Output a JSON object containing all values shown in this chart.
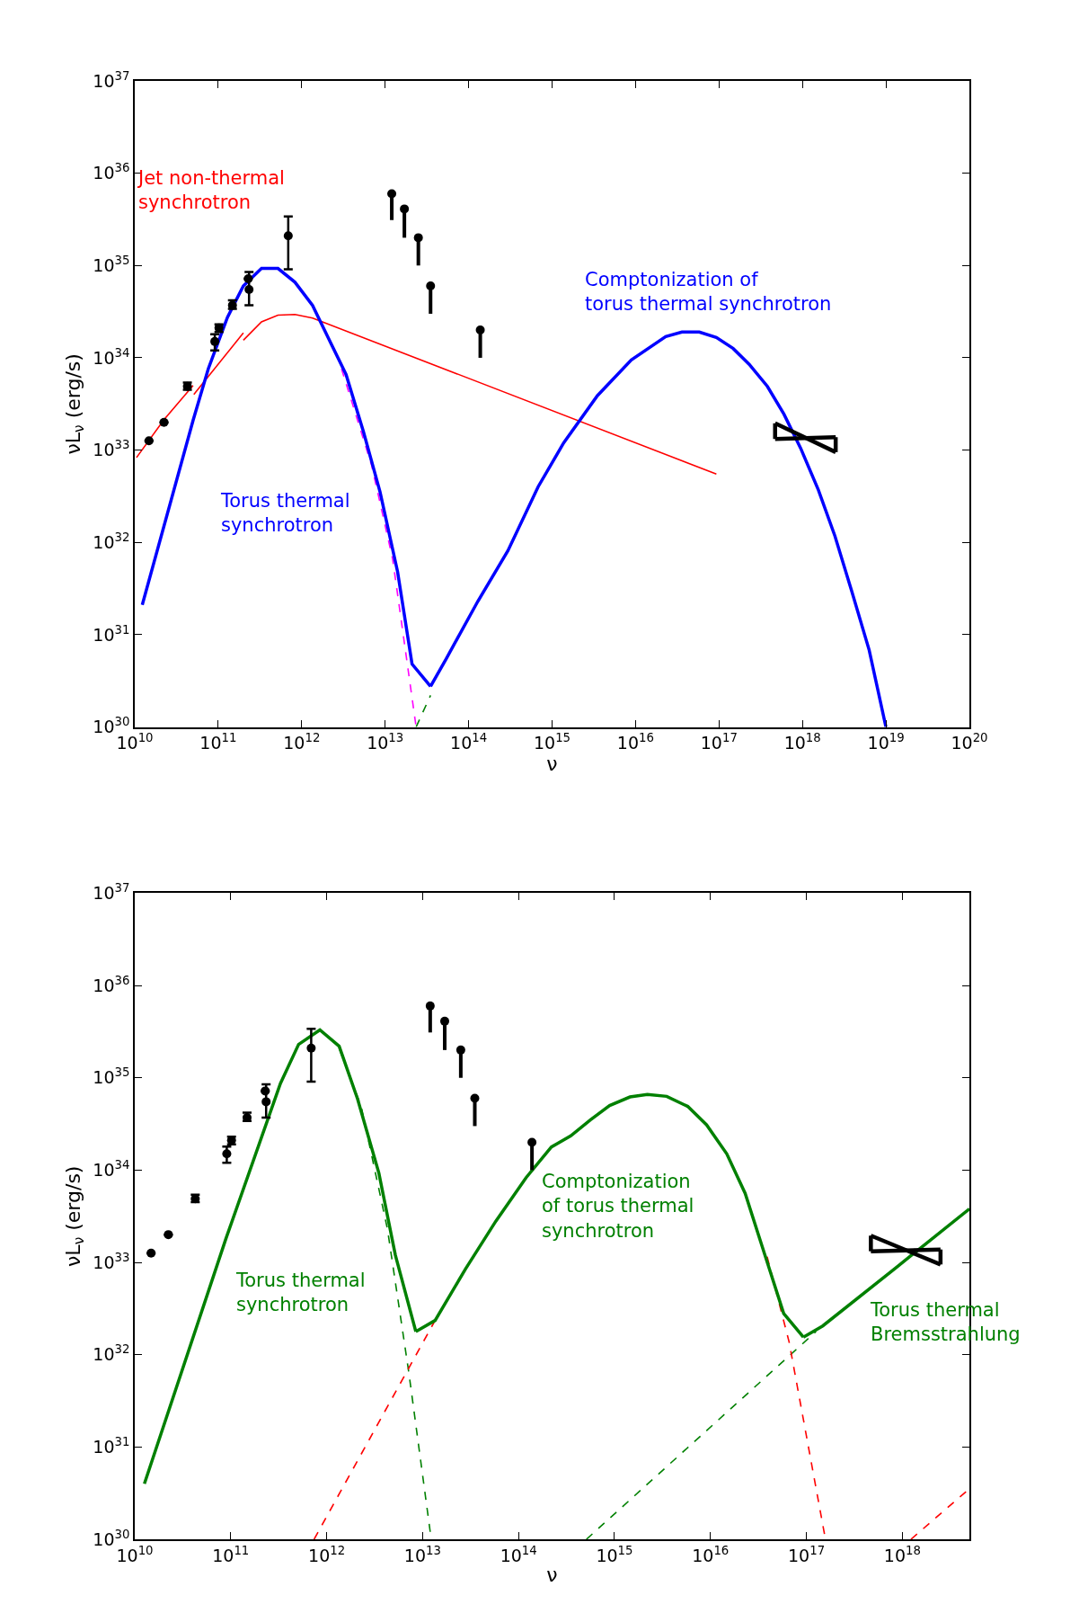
{
  "chart_data": [
    {
      "type": "line",
      "xlabel": "ν",
      "ylabel": "νL$_{ν}$ (erg/s)",
      "log": "xy",
      "xlim": [
        10000000000.0,
        1e+20
      ],
      "ylim": [
        1e+30,
        1e+37
      ],
      "xticks": [
        {
          "value": 10000000000.0,
          "label": "10$^{10}$"
        },
        {
          "value": 100000000000.0,
          "label": "10$^{11}$"
        },
        {
          "value": 1000000000000.0,
          "label": "10$^{12}$"
        },
        {
          "value": 10000000000000.0,
          "label": "10$^{13}$"
        },
        {
          "value": 100000000000000.0,
          "label": "10$^{14}$"
        },
        {
          "value": 1000000000000000.0,
          "label": "10$^{15}$"
        },
        {
          "value": 1e+16,
          "label": "10$^{16}$"
        },
        {
          "value": 1e+17,
          "label": "10$^{17}$"
        },
        {
          "value": 1e+18,
          "label": "10$^{18}$"
        },
        {
          "value": 1e+19,
          "label": "10$^{19}$"
        },
        {
          "value": 1e+20,
          "label": "10$^{20}$"
        }
      ],
      "yticks": [
        {
          "value": 1e+30,
          "label": "10$^{30}$"
        },
        {
          "value": 1e+31,
          "label": "10$^{31}$"
        },
        {
          "value": 1e+32,
          "label": "10$^{32}$"
        },
        {
          "value": 1e+33,
          "label": "10$^{33}$"
        },
        {
          "value": 1e+34,
          "label": "10$^{34}$"
        },
        {
          "value": 1e+35,
          "label": "10$^{35}$"
        },
        {
          "value": 1e+36,
          "label": "10$^{36}$"
        },
        {
          "value": 1e+37,
          "label": "10$^{37}$"
        }
      ],
      "series": [
        {
          "name": "Jet non-thermal\nsynchrotron",
          "color": "#ff0000",
          "line_style": "solid",
          "marker": "none",
          "x": [
            10500000000.0,
            22400000000.0,
            50000000000.0,
            null,
            51000000000.0,
            200000000000.0,
            null,
            200000000000.0,
            330000000000.0,
            520000000000.0,
            830000000000.0,
            1350000000000.0,
            9.3e+16
          ],
          "values": [
            8.3e+32,
            2.14e+33,
            5e+33,
            null,
            4e+33,
            1.86e+34,
            null,
            1.55e+34,
            2.45e+34,
            2.9e+34,
            2.95e+34,
            2.7e+34,
            5.5e+32
          ]
        },
        {
          "color": "#ff00ff",
          "line_style": "dashed",
          "marker": "none",
          "x": [
            3000000000000.0,
            6900000000000.0,
            12300000000000.0,
            23500000000000.0
          ],
          "values": [
            7.6e+33,
            6.8e+32,
            6.6e+31,
            1e+30
          ]
        },
        {
          "color": "#008000",
          "line_style": "dashed",
          "marker": "none",
          "x": [
            23500000000000.0,
            35000000000000.0
          ],
          "values": [
            1e+30,
            2.2e+30
          ]
        },
        {
          "name": "Torus thermal\nsynchrotron",
          "color": "#0000ff",
          "line_style": "solid",
          "marker": "none",
          "x": [
            12300000000.0,
            50000000000.0,
            76000000000.0,
            129000000000.0,
            200000000000.0,
            330000000000.0,
            520000000000.0,
            830000000000.0,
            1350000000000.0,
            2100000000000.0,
            3400000000000.0,
            5500000000000.0,
            8700000000000.0,
            14100000000000.0,
            21000000000000.0,
            35000000000000.0
          ],
          "values": [
            2.1e+31,
            2.1e+33,
            7.6e+33,
            2.75e+34,
            6e+34,
            9.3e+34,
            9.3e+34,
            6.6e+34,
            3.7e+34,
            1.62e+34,
            6.6e+33,
            1.58e+33,
            3.5e+32,
            4.8e+31,
            4.8e+30,
            2.75e+30
          ]
        },
        {
          "name": "Comptonization of\ntorus thermal synchrotron",
          "color": "#0000ff",
          "line_style": "solid",
          "marker": "none",
          "x": [
            35000000000000.0,
            54000000000000.0,
            129000000000000.0,
            295000000000000.0,
            680000000000000.0,
            1380000000000000.0,
            3500000000000000.0,
            8900000000000000.0,
            2.3e+16,
            3.6e+16,
            5.8e+16,
            9.3e+16,
            1.48e+17,
            2.3e+17,
            3.8e+17,
            6e+17,
            9.5e+17,
            1.55e+18,
            2.45e+18,
            3.9e+18,
            6.3e+18,
            1e+19
          ],
          "values": [
            2.75e+30,
            5.5e+30,
            2.3e+31,
            8.1e+31,
            4e+32,
            1.2e+33,
            3.9e+33,
            9.5e+33,
            1.7e+34,
            1.9e+34,
            1.9e+34,
            1.66e+34,
            1.26e+34,
            8.5e+33,
            4.9e+33,
            2.45e+33,
            1.05e+33,
            3.7e+32,
            1.17e+32,
            2.95e+31,
            6.8e+30,
            1e+30
          ]
        },
        {
          "color": "#000000",
          "line_style": "solid",
          "marker": "none",
          "x": [
            4.7e+17,
            2.5e+18
          ],
          "values": [
            1.95e+33,
            9.5e+32
          ]
        },
        {
          "color": "#000000",
          "line_style": "solid",
          "marker": "none",
          "x": [
            4.7e+17,
            2.5e+18
          ],
          "values": [
            1.32e+33,
            1.38e+33
          ],
          "errors": [
            [
              1.32e+33,
              1.95e+33
            ],
            [
              9.5e+32,
              1.38e+33
            ]
          ]
        },
        {
          "color": "#000000",
          "type": "scatter",
          "marker": "circle",
          "x": [
            14800000000.0,
            22400000000.0,
            42700000000.0,
            91000000000.0,
            102000000000.0,
            148000000000.0,
            229000000000.0,
            234000000000.0,
            690000000000.0
          ],
          "values": [
            1.26e+33,
            2e+33,
            4.9e+33,
            1.5e+34,
            2.1e+34,
            3.7e+34,
            7.2e+34,
            5.5e+34,
            2.1e+35
          ],
          "errors": [
            null,
            null,
            [
              4.5e+33,
              5.4e+33
            ],
            [
              1.2e+34,
              1.8e+34
            ],
            [
              1.9e+34,
              2.3e+34
            ],
            [
              3.4e+34,
              4.2e+34
            ],
            null,
            [
              3.7e+34,
              8.5e+34
            ],
            [
              9.1e+34,
              3.4e+35
            ]
          ]
        },
        {
          "color": "#000000",
          "type": "scatter",
          "marker": "circle",
          "x": [
            12000000000000.0,
            17000000000000.0,
            25000000000000.0,
            35000000000000.0,
            138000000000000.0
          ],
          "values": [
            6e+35,
            4.1e+35,
            2e+35,
            6e+34,
            2e+34
          ],
          "errors": [
            [
              3.1e+35,
              6e+35
            ],
            [
              2e+35,
              4.1e+35
            ],
            [
              1e+35,
              2e+35
            ],
            [
              3e+34,
              6e+34
            ],
            [
              1e+34,
              2e+34
            ]
          ]
        }
      ]
    },
    {
      "type": "line",
      "xlabel": "ν",
      "ylabel": "νL$_{ν}$ (erg/s)",
      "log": "xy",
      "xlim": [
        10000000000.0,
        5e+18
      ],
      "ylim": [
        1e+30,
        1e+37
      ],
      "xticks": [
        {
          "value": 10000000000.0,
          "label": "10$^{10}$"
        },
        {
          "value": 100000000000.0,
          "label": "10$^{11}$"
        },
        {
          "value": 1000000000000.0,
          "label": "10$^{12}$"
        },
        {
          "value": 10000000000000.0,
          "label": "10$^{13}$"
        },
        {
          "value": 100000000000000.0,
          "label": "10$^{14}$"
        },
        {
          "value": 1000000000000000.0,
          "label": "10$^{15}$"
        },
        {
          "value": 1e+16,
          "label": "10$^{16}$"
        },
        {
          "value": 1e+17,
          "label": "10$^{17}$"
        },
        {
          "value": 1e+18,
          "label": "10$^{18}$"
        }
      ],
      "yticks": [
        {
          "value": 1e+30,
          "label": "10$^{30}$"
        },
        {
          "value": 1e+31,
          "label": "10$^{31}$"
        },
        {
          "value": 1e+32,
          "label": "10$^{32}$"
        },
        {
          "value": 1e+33,
          "label": "10$^{33}$"
        },
        {
          "value": 1e+34,
          "label": "10$^{34}$"
        },
        {
          "value": 1e+35,
          "label": "10$^{35}$"
        },
        {
          "value": 1e+36,
          "label": "10$^{36}$"
        },
        {
          "value": 1e+37,
          "label": "10$^{37}$"
        }
      ],
      "series": [
        {
          "color": "#008000",
          "line_style": "dashed",
          "marker": "none",
          "x": [
            1350000000000.0,
            2300000000000.0,
            4300000000000.0,
            7200000000000.0,
            12300000000000.0
          ],
          "values": [
            2.1e+35,
            4.8e+34,
            2.3e+33,
            6.3e+31,
            1e+30
          ]
        },
        {
          "color": "#008000",
          "line_style": "dashed",
          "marker": "none",
          "x": [
            510000000000000.0,
            1.26e+17
          ],
          "values": [
            1e+30,
            1.78e+32
          ]
        },
        {
          "color": "#ff0000",
          "line_style": "dashed",
          "marker": "none",
          "x": [
            740000000000.0,
            13500000000000.0
          ],
          "values": [
            1e+30,
            2.35e+32
          ]
        },
        {
          "color": "#ff0000",
          "line_style": "dashed",
          "marker": "none",
          "x": [
            3.9e+16,
            6.6e+16,
            1.58e+17
          ],
          "values": [
            1.15e+33,
            1.38e+32,
            1e+30
          ]
        },
        {
          "color": "#ff0000",
          "line_style": "dashed",
          "marker": "none",
          "x": [
            1.23e+18,
            4.8e+18
          ],
          "values": [
            1e+30,
            3.4e+30
          ]
        },
        {
          "name": "Torus thermal\nsynchrotron",
          "color": "#008000",
          "line_style": "solid",
          "marker": "none",
          "x": [
            12600000000.0,
            89000000000.0,
            330000000000.0,
            510000000000.0,
            850000000000.0,
            1350000000000.0,
            2100000000000.0,
            3500000000000.0,
            5200000000000.0,
            8500000000000.0
          ],
          "values": [
            4e+30,
            1.8e+33,
            8.7e+34,
            2.3e+35,
            3.3e+35,
            2.2e+35,
            5.9e+34,
            9.3e+33,
            1.2e+33,
            1.78e+32
          ]
        },
        {
          "name": "Comptonization\nof torus thermal\nsynchrotron",
          "color": "#008000",
          "line_style": "solid",
          "marker": "none",
          "x": [
            8500000000000.0,
            13500000000000.0,
            28000000000000.0,
            58000000000000.0,
            120000000000000.0,
            220000000000000.0,
            350000000000000.0,
            560000000000000.0,
            890000000000000.0,
            1450000000000000.0,
            2200000000000000.0,
            3500000000000000.0,
            5800000000000000.0,
            9100000000000000.0,
            1.48e+16,
            2.3e+16,
            3.7e+16,
            5.8e+16,
            9.3e+16
          ],
          "values": [
            1.78e+32,
            2.35e+32,
            8.5e+32,
            2.8e+33,
            8.3e+33,
            1.78e+34,
            2.35e+34,
            3.5e+34,
            5e+34,
            6.2e+34,
            6.6e+34,
            6.3e+34,
            4.9e+34,
            3.1e+34,
            1.5e+34,
            5.6e+33,
            1.2e+33,
            2.8e+32,
            1.55e+32
          ]
        },
        {
          "name": "Torus thermal\nBremsstrahlung",
          "color": "#008000",
          "line_style": "solid",
          "marker": "none",
          "x": [
            9.3e+16,
            1.48e+17,
            8.5e+17,
            5e+18
          ],
          "values": [
            1.55e+32,
            2.05e+32,
            8.7e+32,
            3.8e+33
          ]
        },
        {
          "color": "#000000",
          "line_style": "solid",
          "marker": "none",
          "x": [
            4.7e+17,
            2.5e+18
          ],
          "values": [
            1.95e+33,
            9.5e+32
          ]
        },
        {
          "color": "#000000",
          "line_style": "solid",
          "marker": "none",
          "x": [
            4.7e+17,
            2.5e+18
          ],
          "values": [
            1.32e+33,
            1.38e+33
          ],
          "errors": [
            [
              1.32e+33,
              1.95e+33
            ],
            [
              9.5e+32,
              1.38e+33
            ]
          ]
        },
        {
          "color": "#000000",
          "type": "scatter",
          "marker": "circle",
          "x": [
            14800000000.0,
            22400000000.0,
            42700000000.0,
            91000000000.0,
            102000000000.0,
            148000000000.0,
            229000000000.0,
            234000000000.0,
            690000000000.0
          ],
          "values": [
            1.26e+33,
            2e+33,
            4.9e+33,
            1.5e+34,
            2.1e+34,
            3.7e+34,
            7.2e+34,
            5.5e+34,
            2.1e+35
          ],
          "errors": [
            null,
            null,
            [
              4.5e+33,
              5.4e+33
            ],
            [
              1.2e+34,
              1.8e+34
            ],
            [
              1.9e+34,
              2.3e+34
            ],
            [
              3.4e+34,
              4.2e+34
            ],
            null,
            [
              3.7e+34,
              8.5e+34
            ],
            [
              9.1e+34,
              3.4e+35
            ]
          ]
        },
        {
          "color": "#000000",
          "type": "scatter",
          "marker": "circle",
          "x": [
            12000000000000.0,
            17000000000000.0,
            25000000000000.0,
            35000000000000.0,
            138000000000000.0
          ],
          "values": [
            6e+35,
            4.1e+35,
            2e+35,
            6e+34,
            2e+34
          ],
          "errors": [
            [
              3.1e+35,
              6e+35
            ],
            [
              2e+35,
              4.1e+35
            ],
            [
              1e+35,
              2e+35
            ],
            [
              3e+34,
              6e+34
            ],
            [
              1e+34,
              2e+34
            ]
          ]
        }
      ]
    }
  ]
}
